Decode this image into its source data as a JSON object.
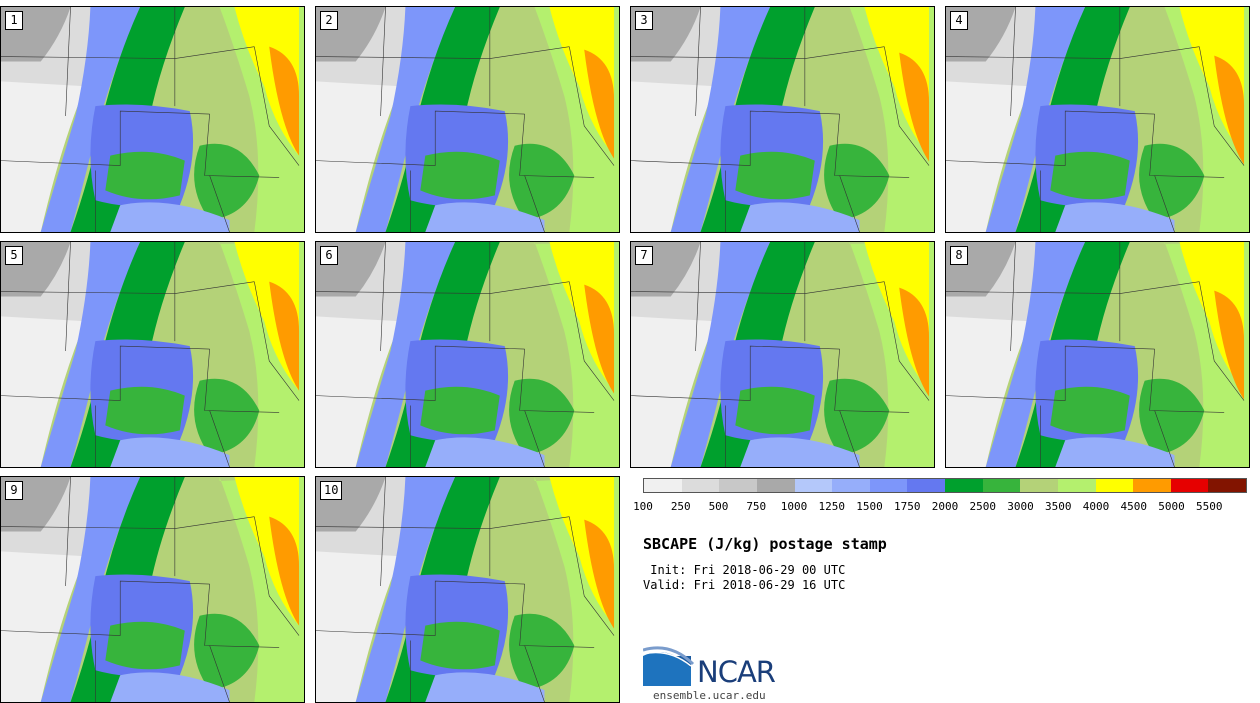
{
  "panels": [
    {
      "label": "1"
    },
    {
      "label": "2"
    },
    {
      "label": "3"
    },
    {
      "label": "4"
    },
    {
      "label": "5"
    },
    {
      "label": "6"
    },
    {
      "label": "7"
    },
    {
      "label": "8"
    },
    {
      "label": "9"
    },
    {
      "label": "10"
    }
  ],
  "colorbar": {
    "colors": [
      "#f0f0f0",
      "#dcdcdc",
      "#c8c8c8",
      "#a9a9a9",
      "#b4c8fa",
      "#96aefa",
      "#7d96fa",
      "#6478f0",
      "#00a02d",
      "#37b43c",
      "#b4d278",
      "#b4f06e",
      "#ffff00",
      "#ff9b00",
      "#e60000",
      "#821400"
    ],
    "ticks": [
      "100",
      "250",
      "500",
      "750",
      "1000",
      "1250",
      "1500",
      "1750",
      "2000",
      "2500",
      "3000",
      "3500",
      "4000",
      "4500",
      "5000",
      "5500"
    ]
  },
  "title": "SBCAPE (J/kg) postage stamp",
  "init": " Init: Fri 2018-06-29 00 UTC",
  "valid": "Valid: Fri 2018-06-29 16 UTC",
  "logo": {
    "text": "NCAR",
    "color": "#1a3e7a"
  },
  "site": "ensemble.ucar.edu"
}
